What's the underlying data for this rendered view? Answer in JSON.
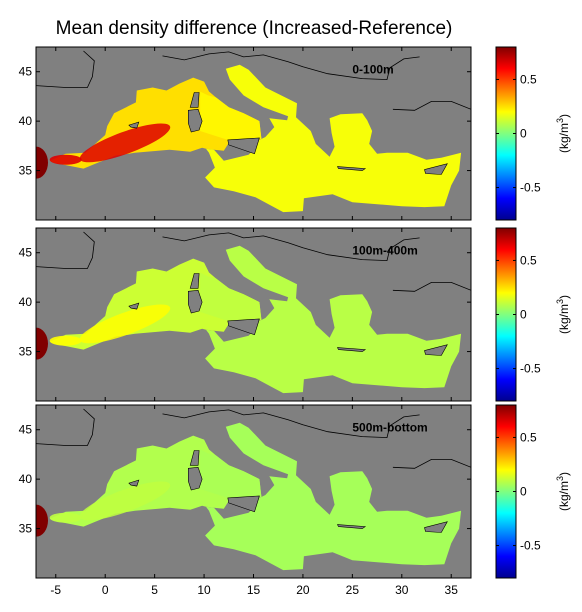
{
  "title": "Mean density difference (Increased-Reference)",
  "colorbar": {
    "unit": "(kg/m",
    "unit_sup": "3",
    "unit_close": ")",
    "ticks": [
      "0.5",
      "0",
      "-0.5"
    ],
    "tick_values": [
      0.5,
      0,
      -0.5
    ],
    "range": [
      -0.8,
      0.8
    ],
    "colormap": "jet"
  },
  "chart_data": {
    "type": "heatmap",
    "title": "Mean density difference (Increased-Reference)",
    "xlim": [
      -7,
      37
    ],
    "ylim": [
      30,
      47.5
    ],
    "x_ticks": [
      "-5",
      "0",
      "5",
      "10",
      "15",
      "20",
      "25",
      "30",
      "35"
    ],
    "x_tick_values": [
      -5,
      0,
      5,
      10,
      15,
      20,
      25,
      30,
      35
    ],
    "y_ticks": [
      "45",
      "40",
      "35"
    ],
    "y_tick_values": [
      45,
      40,
      35
    ],
    "land_color": "#808080",
    "panels": [
      {
        "label": "0-100m",
        "typical_value": 0.25,
        "max_value": 0.65,
        "west_value": 0.8
      },
      {
        "label": "100m-400m",
        "typical_value": 0.12,
        "max_value": 0.2,
        "west_value": 0.8
      },
      {
        "label": "500m-bottom",
        "typical_value": 0.08,
        "max_value": 0.1,
        "west_value": 0.8
      }
    ]
  }
}
